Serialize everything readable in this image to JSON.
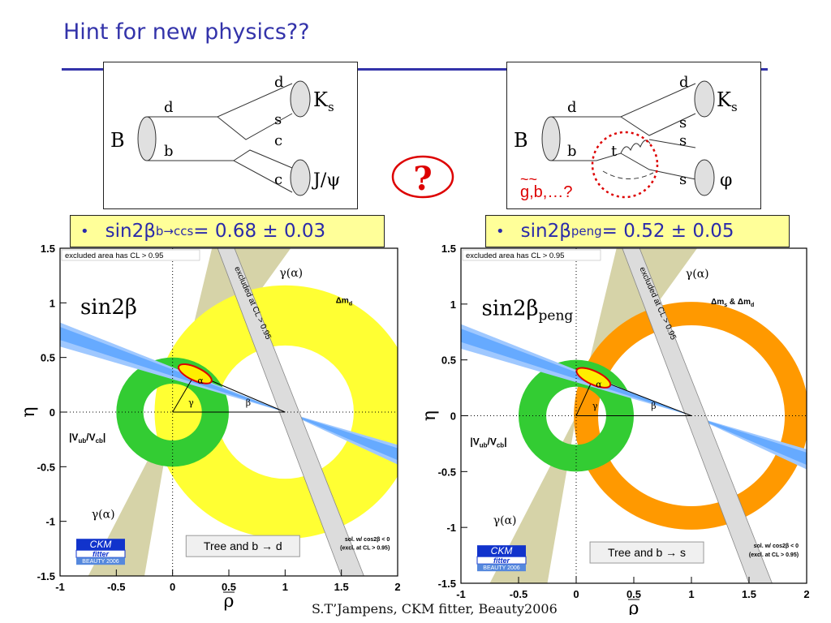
{
  "slide": {
    "title": "Hint for new physics??",
    "footer": "S.T’Jampens, CKM fitter, Beauty2006",
    "question_mark": "?"
  },
  "diagrams": [
    {
      "name": "tree",
      "B": "B",
      "quark_labels": [
        "d",
        "b",
        "d",
        "s",
        "c",
        "c"
      ],
      "Ks": "K",
      "Ks_sub": "s",
      "jpsi": "J/ψ"
    },
    {
      "name": "penguin",
      "B": "B",
      "quark_labels": [
        "d",
        "b",
        "t",
        "d",
        "s",
        "s",
        "s"
      ],
      "Ks": "K",
      "Ks_sub": "s",
      "phi": "φ",
      "new_physics": "g,b,…?",
      "new_physics_tilde": "~~"
    }
  ],
  "formulas": [
    {
      "bullet": "•",
      "main": "sin2β",
      "sub": "b→ccs",
      "value": " =  0.68 ± 0.03"
    },
    {
      "bullet": "•",
      "main": "sin2β",
      "sub": "peng",
      "value": " =  0.52 ± 0.05"
    }
  ],
  "colors": {
    "title_blue": "#3333aa",
    "formula_bg": "#ffff99",
    "yellow_ring": "#ffff33",
    "orange_ring": "#ff9900",
    "green_ring": "#33cc33",
    "band_blue": "#66aaff",
    "alpha_tan": "#d6d3a8",
    "red": "#dd0000"
  },
  "chart_data": [
    {
      "type": "constraint-plot",
      "panel": "left",
      "xlabel": "ρ",
      "ylabel": "η",
      "xlim": [
        -1,
        2
      ],
      "ylim": [
        -1.5,
        1.5
      ],
      "xticks": [
        "-1",
        "-0.5",
        "0",
        "0.5",
        "1",
        "1.5",
        "2"
      ],
      "yticks": [
        "1.5",
        "1",
        "0.5",
        "0",
        "-0.5",
        "-1",
        "-1.5"
      ],
      "excluded_note": "excluded area has CL > 0.95",
      "excluded_cl": "excluded at CL > 0.95",
      "big_label": "sin2β",
      "big_label_sub": "",
      "dm_label": "Δm",
      "dm_sub": "d",
      "vub_label": "|V",
      "vub_sub1": "ub",
      "vub_mid": "/V",
      "vub_sub2": "cb",
      "vub_end": "|",
      "gamma_alpha": "γ(α)",
      "alpha": "α",
      "beta": "β",
      "gamma": "γ",
      "box_label": "Tree and b → d",
      "solution_note_1": "sol. w/ cos2β < 0",
      "solution_note_2": "(excl. at CL > 0.95)",
      "logo_1": "CKM",
      "logo_2": "fitter",
      "logo_3": "BEAUTY 2006",
      "dm_ring": {
        "center": [
          1,
          0
        ],
        "r_inner": 0.61,
        "r_outer": 1.16
      },
      "vub_ring": {
        "center": [
          0,
          0
        ],
        "r_inner": 0.26,
        "r_outer": 0.5
      },
      "apex": [
        0.2,
        0.35
      ]
    },
    {
      "type": "constraint-plot",
      "panel": "right",
      "xlabel": "ρ",
      "ylabel": "η",
      "xlim": [
        -1,
        2
      ],
      "ylim": [
        -1.5,
        1.5
      ],
      "xticks": [
        "-1",
        "-0.5",
        "0",
        "0.5",
        "1",
        "1.5",
        "2"
      ],
      "yticks": [
        "1.5",
        "1",
        "0.5",
        "0",
        "-0.5",
        "-1",
        "-1.5"
      ],
      "excluded_note": "excluded area has CL > 0.95",
      "excluded_cl": "excluded at CL > 0.95",
      "big_label": "sin2β",
      "big_label_sub": "peng",
      "dm_label": "Δm",
      "dm_sub": "s",
      "dm_label_2": " & Δm",
      "dm_sub_2": "d",
      "vub_label": "|V",
      "vub_sub1": "ub",
      "vub_mid": "/V",
      "vub_sub2": "cb",
      "vub_end": "|",
      "gamma_alpha": "γ(α)",
      "alpha": "α",
      "beta": "β",
      "gamma": "γ",
      "box_label": "Tree and b → s",
      "solution_note_1": "sol. w/ cos2β < 0",
      "solution_note_2": "(excl. at CL > 0.95)",
      "logo_1": "CKM",
      "logo_2": "fitter",
      "logo_3": "BEAUTY 2006",
      "dm_ring": {
        "center": [
          1,
          0
        ],
        "r_inner": 0.81,
        "r_outer": 1.02
      },
      "vub_ring": {
        "center": [
          0,
          0
        ],
        "r_inner": 0.26,
        "r_outer": 0.5
      },
      "apex": [
        0.15,
        0.34
      ]
    }
  ]
}
